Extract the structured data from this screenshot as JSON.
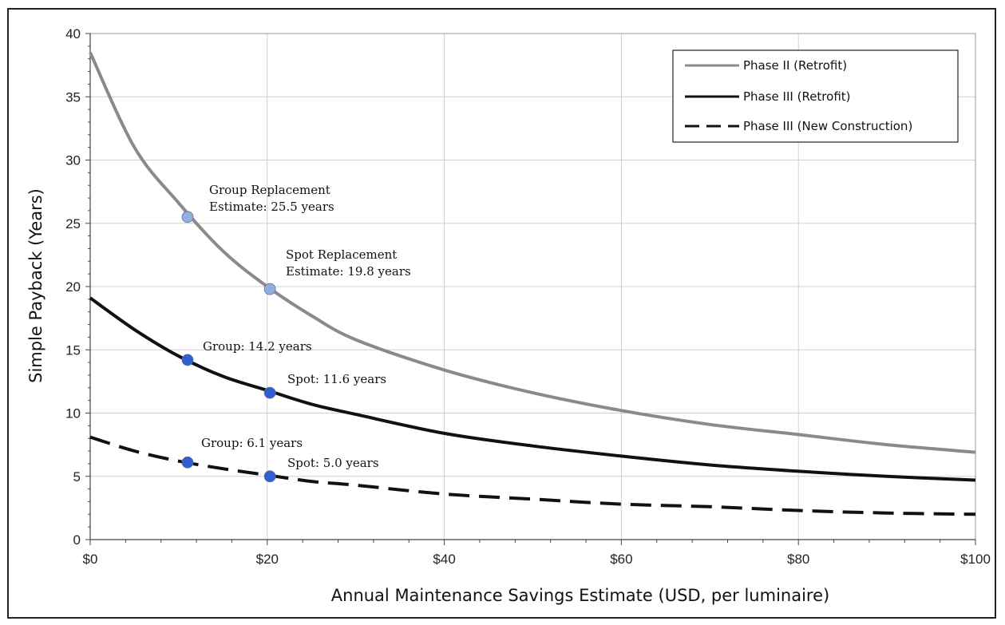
{
  "chart_data": {
    "type": "line",
    "xlabel": "Annual Maintenance Savings Estimate (USD, per luminaire)",
    "ylabel": "Simple Payback (Years)",
    "xlim": [
      0,
      100
    ],
    "ylim": [
      0,
      40
    ],
    "x_ticks": [
      0,
      20,
      40,
      60,
      80,
      100
    ],
    "x_tick_labels": [
      "$0",
      "$20",
      "$40",
      "$60",
      "$80",
      "$100"
    ],
    "y_ticks": [
      0,
      5,
      10,
      15,
      20,
      25,
      30,
      35,
      40
    ],
    "y_tick_labels": [
      "0",
      "5",
      "10",
      "15",
      "20",
      "25",
      "30",
      "35",
      "40"
    ],
    "grid": true,
    "legend_position": "top-right",
    "series": [
      {
        "name": "Phase II (Retrofit)",
        "color": "#8a8a8a",
        "style": "solid",
        "x": [
          0,
          5,
          10,
          15,
          20,
          25,
          30,
          40,
          50,
          60,
          70,
          80,
          90,
          100
        ],
        "values": [
          38.5,
          31.0,
          26.6,
          22.8,
          20.0,
          17.7,
          15.8,
          13.4,
          11.6,
          10.2,
          9.1,
          8.3,
          7.5,
          6.9
        ]
      },
      {
        "name": "Phase III (Retrofit)",
        "color": "#111111",
        "style": "solid",
        "x": [
          0,
          5,
          10,
          15,
          20,
          25,
          30,
          40,
          50,
          60,
          70,
          80,
          90,
          100
        ],
        "values": [
          19.1,
          16.6,
          14.5,
          12.9,
          11.8,
          10.7,
          9.9,
          8.4,
          7.4,
          6.6,
          5.9,
          5.4,
          5.0,
          4.7
        ]
      },
      {
        "name": "Phase III (New Construction)",
        "color": "#111111",
        "style": "dashed",
        "x": [
          0,
          5,
          10,
          15,
          20,
          25,
          30,
          40,
          50,
          60,
          70,
          80,
          90,
          100
        ],
        "values": [
          8.1,
          7.0,
          6.2,
          5.6,
          5.1,
          4.6,
          4.3,
          3.6,
          3.2,
          2.8,
          2.6,
          2.3,
          2.1,
          2.0
        ]
      }
    ],
    "markers": [
      {
        "x": 11,
        "y": 25.5,
        "color": "#8fb0dc"
      },
      {
        "x": 20.3,
        "y": 19.8,
        "color": "#8fb0dc"
      },
      {
        "x": 11,
        "y": 14.2,
        "color": "#2f5fd0"
      },
      {
        "x": 20.3,
        "y": 11.6,
        "color": "#2f5fd0"
      },
      {
        "x": 11,
        "y": 6.1,
        "color": "#2f5fd0"
      },
      {
        "x": 20.3,
        "y": 5.0,
        "color": "#2f5fd0"
      }
    ],
    "annotations": [
      {
        "lines": [
          "Group Replacement",
          "Estimate: 25.5 years"
        ]
      },
      {
        "lines": [
          "Spot Replacement",
          "Estimate: 19.8 years"
        ]
      },
      {
        "lines": [
          "Group: 14.2 years"
        ]
      },
      {
        "lines": [
          "Spot: 11.6 years"
        ]
      },
      {
        "lines": [
          "Group: 6.1 years"
        ]
      },
      {
        "lines": [
          "Spot: 5.0 years"
        ]
      }
    ]
  }
}
